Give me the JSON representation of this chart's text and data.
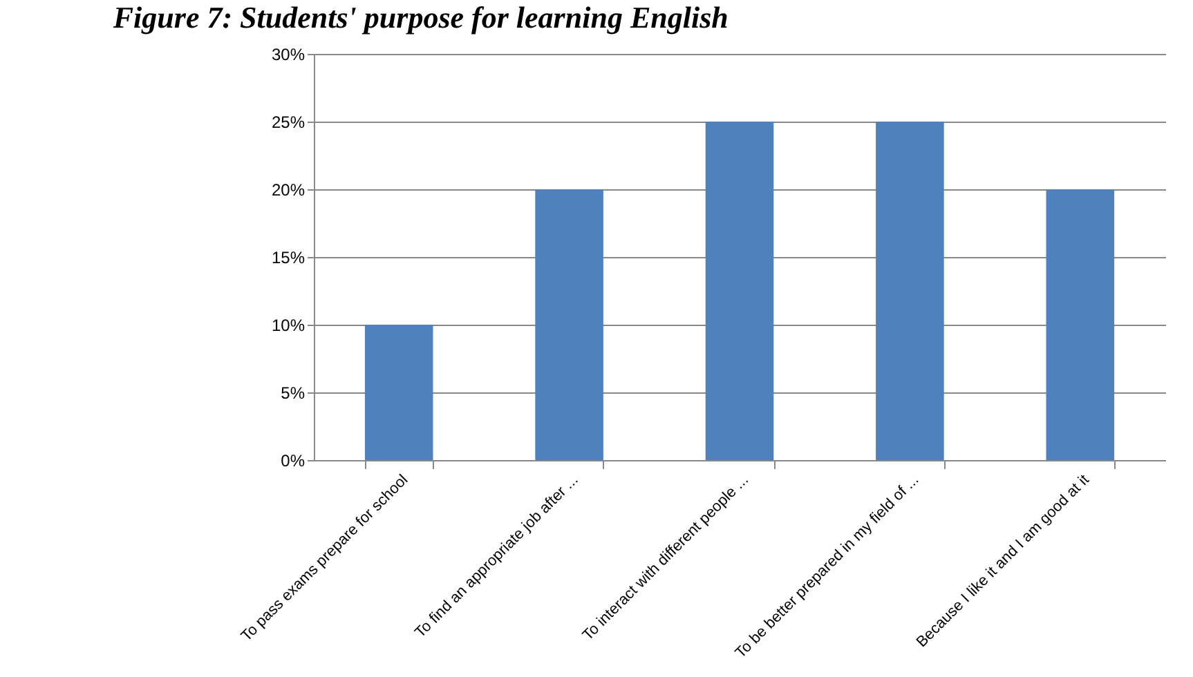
{
  "chart_data": {
    "type": "bar",
    "title": "Figure 7: Students' purpose for learning English",
    "categories": [
      "To pass exams prepare for school",
      "To find an appropriate job after ...",
      "To interact with different people ...",
      "To be better prepared in my field of ...",
      "Because  I like it and I am good at it"
    ],
    "values": [
      10,
      20,
      25,
      25,
      20
    ],
    "color": "#4f81bd",
    "ylim": [
      0,
      30
    ],
    "yticks": [
      {
        "value": 0,
        "label": "0%"
      },
      {
        "value": 5,
        "label": "5%"
      },
      {
        "value": 10,
        "label": "10%"
      },
      {
        "value": 15,
        "label": "15%"
      },
      {
        "value": 20,
        "label": "20%"
      },
      {
        "value": 25,
        "label": "25%"
      },
      {
        "value": 30,
        "label": "30%"
      }
    ],
    "grid": "y"
  }
}
